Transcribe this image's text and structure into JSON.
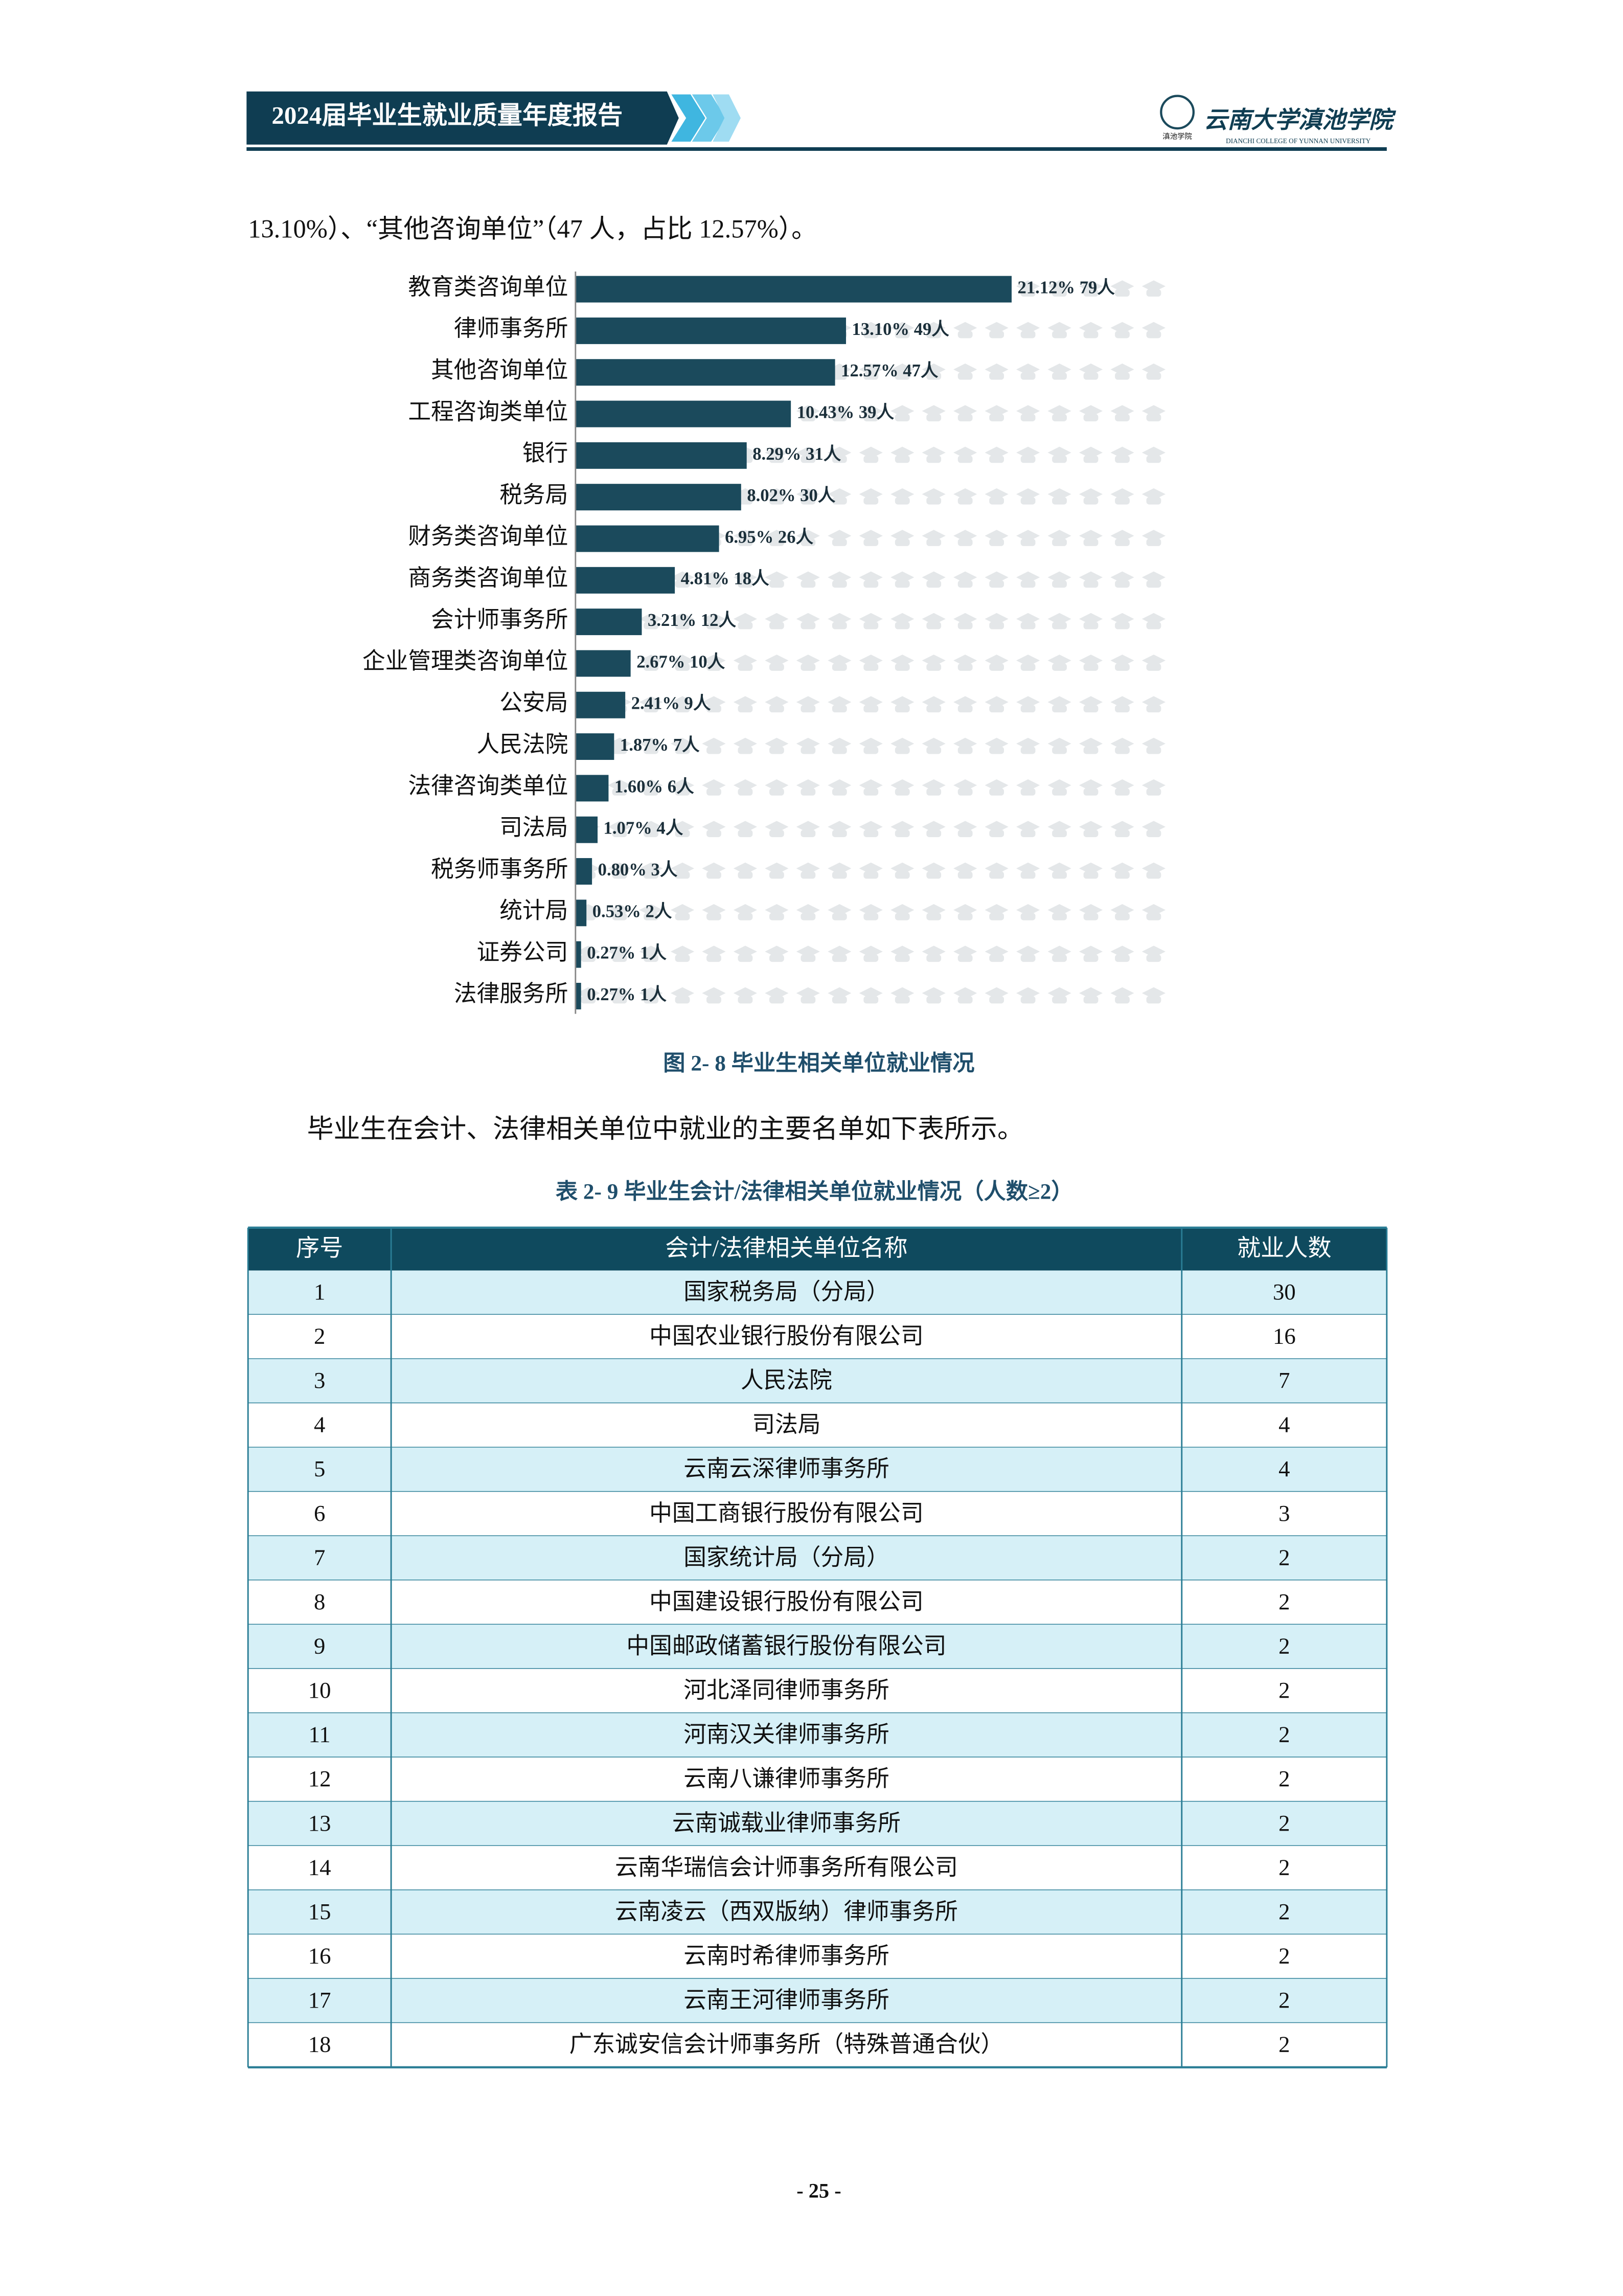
{
  "header": {
    "title": "2024届毕业生就业质量年度报告",
    "school": "云南大学滇池学院",
    "school_en": "DIANCHI COLLEGE OF YUNNAN UNIVERSITY",
    "logo_text": "滇池学院"
  },
  "intro": "13.10%）、“其他咨询单位”（47 人，占比 12.57%）。",
  "chart_data": {
    "type": "bar",
    "orientation": "horizontal",
    "color": "#1b4a5c",
    "categories": [
      "教育类咨询单位",
      "律师事务所",
      "其他咨询单位",
      "工程咨询类单位",
      "银行",
      "税务局",
      "财务类咨询单位",
      "商务类咨询单位",
      "会计师事务所",
      "企业管理类咨询单位",
      "公安局",
      "人民法院",
      "法律咨询类单位",
      "司法局",
      "税务师事务所",
      "统计局",
      "证券公司",
      "法律服务所"
    ],
    "values": [
      21.12,
      13.1,
      12.57,
      10.43,
      8.29,
      8.02,
      6.95,
      4.81,
      3.21,
      2.67,
      2.41,
      1.87,
      1.6,
      1.07,
      0.8,
      0.53,
      0.27,
      0.27
    ],
    "value_labels": [
      "21.12% 79人",
      "13.10% 49人",
      "12.57% 47人",
      "10.43% 39人",
      "8.29% 31人",
      "8.02% 30人",
      "6.95% 26人",
      "4.81% 18人",
      "3.21% 12人",
      "2.67% 10人",
      "2.41% 9人",
      "1.87% 7人",
      "1.60% 6人",
      "1.07% 4人",
      "0.80% 3人",
      "0.53% 2人",
      "0.27% 1人",
      "0.27% 1人"
    ],
    "caption": "图 2- 8  毕业生相关单位就业情况"
  },
  "paragraph": "毕业生在会计、法律相关单位中就业的主要名单如下表所示。",
  "table": {
    "caption": "表 2- 9  毕业生会计/法律相关单位就业情况（人数≥2）",
    "columns": [
      "序号",
      "会计/法律相关单位名称",
      "就业人数"
    ],
    "rows": [
      [
        "1",
        "国家税务局（分局）",
        "30"
      ],
      [
        "2",
        "中国农业银行股份有限公司",
        "16"
      ],
      [
        "3",
        "人民法院",
        "7"
      ],
      [
        "4",
        "司法局",
        "4"
      ],
      [
        "5",
        "云南云深律师事务所",
        "4"
      ],
      [
        "6",
        "中国工商银行股份有限公司",
        "3"
      ],
      [
        "7",
        "国家统计局（分局）",
        "2"
      ],
      [
        "8",
        "中国建设银行股份有限公司",
        "2"
      ],
      [
        "9",
        "中国邮政储蓄银行股份有限公司",
        "2"
      ],
      [
        "10",
        "河北泽同律师事务所",
        "2"
      ],
      [
        "11",
        "河南汉关律师事务所",
        "2"
      ],
      [
        "12",
        "云南八谦律师事务所",
        "2"
      ],
      [
        "13",
        "云南诚载业律师事务所",
        "2"
      ],
      [
        "14",
        "云南华瑞信会计师事务所有限公司",
        "2"
      ],
      [
        "15",
        "云南凌云（西双版纳）律师事务所",
        "2"
      ],
      [
        "16",
        "云南时希律师事务所",
        "2"
      ],
      [
        "17",
        "云南王河律师事务所",
        "2"
      ],
      [
        "18",
        "广东诚安信会计师事务所（特殊普通合伙）",
        "2"
      ]
    ]
  },
  "page_number": "- 25 -"
}
